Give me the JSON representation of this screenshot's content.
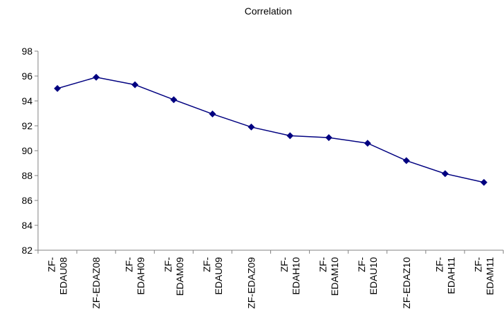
{
  "chart_data": {
    "type": "line",
    "title": "Correlation",
    "xlabel": "",
    "ylabel": "",
    "ylim": [
      82,
      98
    ],
    "yticks": [
      82,
      84,
      86,
      88,
      90,
      92,
      94,
      96,
      98
    ],
    "grid": false,
    "legend": "none",
    "categories": [
      [
        "ZF-",
        "EDAU08"
      ],
      [
        "ZF-EDAZ08"
      ],
      [
        "ZF-",
        "EDAH09"
      ],
      [
        "ZF-",
        "EDAM09"
      ],
      [
        "ZF-",
        "EDAU09"
      ],
      [
        "ZF-EDAZ09"
      ],
      [
        "ZF-",
        "EDAH10"
      ],
      [
        "ZF-",
        "EDAM10"
      ],
      [
        "ZF-",
        "EDAU10"
      ],
      [
        "ZF-EDAZ10"
      ],
      [
        "ZF-",
        "EDAH11"
      ],
      [
        "ZF-",
        "EDAM11"
      ]
    ],
    "series": [
      {
        "color": "#000080",
        "values": [
          95.0,
          95.9,
          95.3,
          94.1,
          92.95,
          91.9,
          91.2,
          91.05,
          90.6,
          89.2,
          88.15,
          87.45
        ]
      }
    ]
  }
}
